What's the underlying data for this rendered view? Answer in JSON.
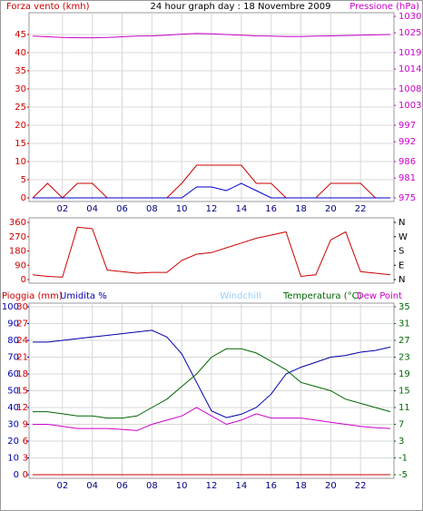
{
  "chart_data": [
    {
      "type": "line",
      "title": "24 hour graph day : 18 Novembre 2009",
      "y_label": "Forza vento (kmh)",
      "y2_label": "Pressione (hPa)",
      "x": [
        0,
        1,
        2,
        3,
        4,
        5,
        6,
        7,
        8,
        9,
        10,
        11,
        12,
        13,
        14,
        15,
        16,
        17,
        18,
        19,
        20,
        21,
        22,
        23,
        24
      ],
      "xlim": [
        0,
        24
      ],
      "xticks": [
        {
          "value": 2,
          "label": "02"
        },
        {
          "value": 4,
          "label": "04"
        },
        {
          "value": 6,
          "label": "06"
        },
        {
          "value": 8,
          "label": "08"
        },
        {
          "value": 10,
          "label": "10"
        },
        {
          "value": 12,
          "label": "12"
        },
        {
          "value": 14,
          "label": "14"
        },
        {
          "value": 16,
          "label": "16"
        },
        {
          "value": 18,
          "label": "18"
        },
        {
          "value": 20,
          "label": "20"
        },
        {
          "value": 22,
          "label": "22"
        }
      ],
      "ylim": [
        0,
        50
      ],
      "yticks": [
        0,
        5,
        10,
        15,
        20,
        25,
        30,
        35,
        40,
        45
      ],
      "y2lim": [
        975,
        1030
      ],
      "y2ticks": [
        975,
        981,
        986,
        992,
        997,
        1003,
        1008,
        1014,
        1019,
        1025,
        1030
      ],
      "grid": true,
      "series": [
        {
          "color": "#cc0000",
          "values": [
            0,
            4,
            0,
            4,
            4,
            0,
            0,
            0,
            0,
            0,
            4,
            9,
            9,
            9,
            9,
            4,
            4,
            0,
            0,
            0,
            4,
            4,
            4,
            0,
            0
          ]
        },
        {
          "color": "#0000cc",
          "values": [
            0,
            0,
            0,
            0,
            0,
            0,
            0,
            0,
            0,
            0,
            0,
            3,
            3,
            2,
            4,
            2,
            0,
            0,
            0,
            0,
            0,
            0,
            0,
            0,
            0
          ]
        },
        {
          "color": "#cc00cc",
          "axis": "y2",
          "values": [
            1024,
            1023.8,
            1023.6,
            1023.5,
            1023.5,
            1023.6,
            1023.8,
            1024,
            1024.1,
            1024.3,
            1024.6,
            1024.8,
            1024.7,
            1024.5,
            1024.3,
            1024.1,
            1024,
            1023.9,
            1023.9,
            1024,
            1024.1,
            1024.2,
            1024.3,
            1024.4,
            1024.5
          ]
        }
      ]
    },
    {
      "type": "line",
      "x": [
        0,
        1,
        2,
        3,
        4,
        5,
        6,
        7,
        8,
        9,
        10,
        11,
        12,
        13,
        14,
        15,
        16,
        17,
        18,
        19,
        20,
        21,
        22,
        23,
        24
      ],
      "xlim": [
        0,
        24
      ],
      "ylim": [
        0,
        360
      ],
      "yticks": [
        0,
        90,
        180,
        270,
        360
      ],
      "y2lim": [
        0,
        360
      ],
      "y2ticks": [
        {
          "value": 0,
          "label": "N"
        },
        {
          "value": 90,
          "label": "E"
        },
        {
          "value": 180,
          "label": "S"
        },
        {
          "value": 270,
          "label": "W"
        },
        {
          "value": 360,
          "label": "N"
        }
      ],
      "grid": false,
      "series": [
        {
          "color": "#cc0000",
          "values": [
            30,
            20,
            15,
            330,
            320,
            60,
            50,
            40,
            45,
            45,
            120,
            160,
            170,
            200,
            230,
            260,
            280,
            300,
            20,
            30,
            250,
            300,
            50,
            40,
            30
          ]
        }
      ]
    },
    {
      "type": "line",
      "y_label": "Umidita %",
      "y3_label": "Pioggia (mm)",
      "windchill_label": "Windchill",
      "y2_label": "Temperatura (°C)",
      "dew_label": "Dew Point",
      "x": [
        0,
        1,
        2,
        3,
        4,
        5,
        6,
        7,
        8,
        9,
        10,
        11,
        12,
        13,
        14,
        15,
        16,
        17,
        18,
        19,
        20,
        21,
        22,
        23,
        24
      ],
      "xlim": [
        0,
        24
      ],
      "xticks": [
        {
          "value": 2,
          "label": "02"
        },
        {
          "value": 4,
          "label": "04"
        },
        {
          "value": 6,
          "label": "06"
        },
        {
          "value": 8,
          "label": "08"
        },
        {
          "value": 10,
          "label": "10"
        },
        {
          "value": 12,
          "label": "12"
        },
        {
          "value": 14,
          "label": "14"
        },
        {
          "value": 16,
          "label": "16"
        },
        {
          "value": 18,
          "label": "18"
        },
        {
          "value": 20,
          "label": "20"
        },
        {
          "value": 22,
          "label": "22"
        }
      ],
      "ylim": [
        0,
        100
      ],
      "yticks": [
        0,
        10,
        20,
        30,
        40,
        50,
        60,
        70,
        80,
        90,
        100
      ],
      "y3lim": [
        0,
        30
      ],
      "y3ticks": [
        0,
        3,
        6,
        9,
        12,
        15,
        18,
        21,
        24,
        27,
        30
      ],
      "y2lim": [
        -5,
        35
      ],
      "y2ticks": [
        -5,
        -1,
        3,
        7,
        11,
        15,
        19,
        23,
        27,
        31,
        35
      ],
      "grid": true,
      "series": [
        {
          "color": "#0000aa",
          "values": [
            79,
            79,
            80,
            81,
            82,
            83,
            84,
            85,
            86,
            82,
            72,
            55,
            38,
            34,
            36,
            40,
            48,
            60,
            64,
            67,
            70,
            71,
            73,
            74,
            76
          ]
        },
        {
          "color": "#cc0000",
          "axis": "y3",
          "values": [
            0,
            0,
            0,
            0,
            0,
            0,
            0,
            0,
            0,
            0,
            0,
            0,
            0,
            0,
            0,
            0,
            0,
            0,
            0,
            0,
            0,
            0,
            0,
            0,
            0
          ]
        },
        {
          "color": "#006600",
          "axis": "y2",
          "values": [
            10,
            10,
            9.5,
            9,
            9,
            8.5,
            8.5,
            9,
            11,
            13,
            16,
            19,
            23,
            25,
            25,
            24,
            22,
            20,
            17,
            16,
            15,
            13,
            12,
            11,
            10
          ]
        },
        {
          "color": "#cc00cc",
          "axis": "y2",
          "values": [
            7,
            7,
            6.5,
            6,
            6,
            6,
            5.8,
            5.5,
            7,
            8,
            9,
            11,
            9,
            7,
            8,
            9.5,
            8.5,
            8.5,
            8.5,
            8,
            7.5,
            7,
            6.5,
            6.2,
            6
          ]
        }
      ]
    }
  ]
}
